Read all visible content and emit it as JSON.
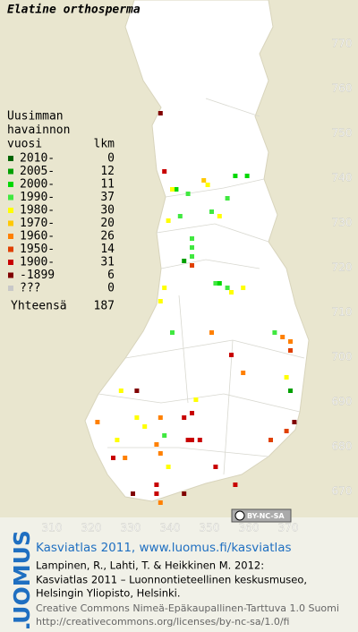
{
  "title": "Elatine orthosperma",
  "legend": {
    "header": [
      "Uusimman",
      "havainnon",
      "vuosi"
    ],
    "count_header": "lkm",
    "rows": [
      {
        "label": "2010-",
        "count": 0,
        "color": "#006400"
      },
      {
        "label": "2005-",
        "count": 12,
        "color": "#00a000"
      },
      {
        "label": "2000-",
        "count": 11,
        "color": "#00d800"
      },
      {
        "label": "1990-",
        "count": 37,
        "color": "#40e840"
      },
      {
        "label": "1980-",
        "count": 30,
        "color": "#ffff00"
      },
      {
        "label": "1970-",
        "count": 20,
        "color": "#ffc800"
      },
      {
        "label": "1960-",
        "count": 26,
        "color": "#ff8000"
      },
      {
        "label": "1950-",
        "count": 14,
        "color": "#e04000"
      },
      {
        "label": "1900-",
        "count": 31,
        "color": "#c80000"
      },
      {
        "label": "-1899",
        "count": 6,
        "color": "#800000"
      },
      {
        "label": "???",
        "count": 0,
        "color": "#c8c8c8"
      }
    ],
    "total_label": "Yhteensä",
    "total": 187
  },
  "xlim": [
    310,
    370
  ],
  "xticks": [
    310,
    320,
    330,
    340,
    350,
    360,
    370
  ],
  "ylim": [
    670,
    770
  ],
  "yticks": [
    670,
    680,
    690,
    700,
    710,
    720,
    730,
    740,
    750,
    760,
    770
  ],
  "squares": [
    [
      337,
      754,
      9
    ],
    [
      338,
      741,
      8
    ],
    [
      356,
      740,
      2
    ],
    [
      348,
      739,
      5
    ],
    [
      349,
      738,
      4
    ],
    [
      359,
      740,
      2
    ],
    [
      341,
      737,
      2
    ],
    [
      340,
      737,
      4
    ],
    [
      344,
      736,
      3
    ],
    [
      354,
      735,
      3
    ],
    [
      350,
      732,
      3
    ],
    [
      352,
      731,
      4
    ],
    [
      342,
      731,
      3
    ],
    [
      339,
      730,
      4
    ],
    [
      345,
      726,
      3
    ],
    [
      345,
      724,
      3
    ],
    [
      345,
      722,
      3
    ],
    [
      343,
      721,
      1
    ],
    [
      345,
      720,
      7
    ],
    [
      351,
      716,
      3
    ],
    [
      352,
      716,
      2
    ],
    [
      354,
      715,
      3
    ],
    [
      355,
      714,
      4
    ],
    [
      358,
      715,
      4
    ],
    [
      338,
      715,
      4
    ],
    [
      337,
      712,
      4
    ],
    [
      340,
      705,
      3
    ],
    [
      350,
      705,
      6
    ],
    [
      366,
      705,
      3
    ],
    [
      368,
      704,
      6
    ],
    [
      370,
      703,
      6
    ],
    [
      370,
      701,
      7
    ],
    [
      355,
      700,
      8
    ],
    [
      358,
      696,
      6
    ],
    [
      370,
      692,
      1
    ],
    [
      369,
      695,
      4
    ],
    [
      327,
      692,
      4
    ],
    [
      331,
      692,
      9
    ],
    [
      346,
      690,
      4
    ],
    [
      345,
      687,
      8
    ],
    [
      343,
      686,
      8
    ],
    [
      337,
      686,
      6
    ],
    [
      331,
      686,
      4
    ],
    [
      333,
      684,
      4
    ],
    [
      321,
      685,
      6
    ],
    [
      338,
      682,
      3
    ],
    [
      336,
      680,
      6
    ],
    [
      337,
      678,
      6
    ],
    [
      326,
      681,
      4
    ],
    [
      344,
      681,
      8
    ],
    [
      345,
      681,
      8
    ],
    [
      347,
      681,
      8
    ],
    [
      365,
      681,
      7
    ],
    [
      369,
      683,
      7
    ],
    [
      371,
      685,
      9
    ],
    [
      325,
      677,
      8
    ],
    [
      328,
      677,
      6
    ],
    [
      339,
      675,
      4
    ],
    [
      336,
      671,
      8
    ],
    [
      330,
      669,
      9
    ],
    [
      343,
      669,
      9
    ],
    [
      351,
      675,
      8
    ],
    [
      356,
      671,
      8
    ],
    [
      336,
      669,
      8
    ],
    [
      337,
      667,
      6
    ]
  ],
  "license_badge": "BY-NC-SA",
  "footer": {
    "logo": "LUOMUS",
    "headline": "Kasviatlas 2011, www.luomus.fi/kasviatlas",
    "citation": [
      "Lampinen, R., Lahti, T. & Heikkinen M. 2012:",
      "Kasviatlas 2011 – Luonnontieteellinen keskusmuseo,",
      "Helsingin Yliopisto, Helsinki."
    ],
    "license": [
      "Creative Commons Nimeä-Epäkaupallinen-Tarttuva 1.0 Suomi",
      "http://creativecommons.org/licenses/by-nc-sa/1.0/fi"
    ]
  }
}
